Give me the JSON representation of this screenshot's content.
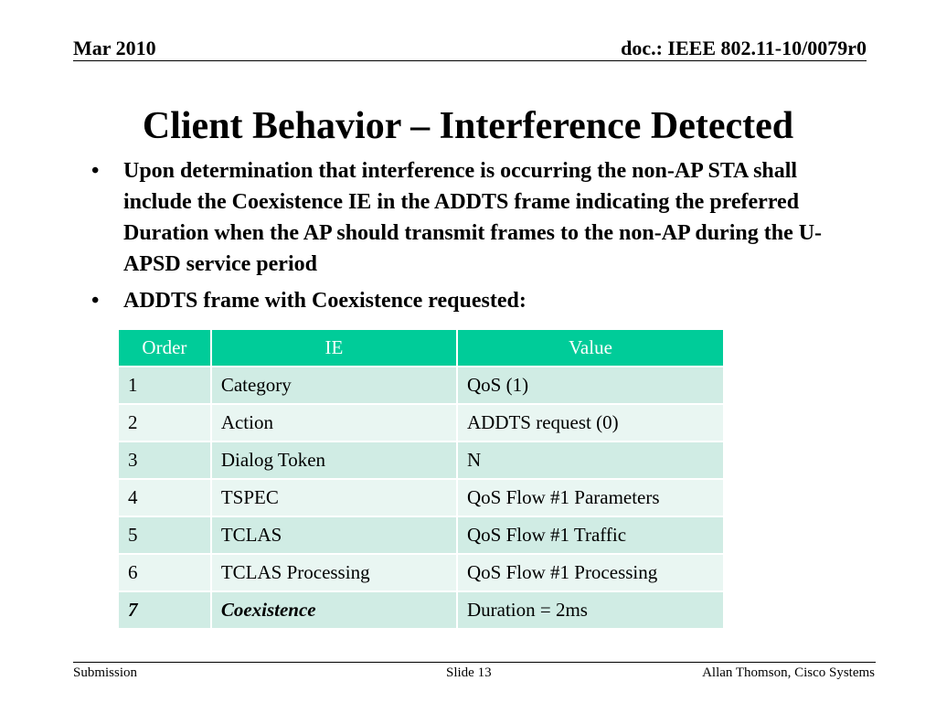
{
  "header": {
    "date": "Mar 2010",
    "doc": "doc.: IEEE 802.11-10/0079r0"
  },
  "title": "Client Behavior – Interference Detected",
  "bullets": [
    "Upon determination that interference is occurring the non-AP STA shall include the Coexistence IE in the ADDTS frame indicating the preferred Duration when the AP should transmit frames to the non-AP during the U-APSD service period",
    "ADDTS frame with Coexistence requested:"
  ],
  "bullet_symbol": "•",
  "table": {
    "header_color": "#00cc99",
    "columns": [
      "Order",
      "IE",
      "Value"
    ],
    "rows": [
      [
        "1",
        "Category",
        "QoS (1)"
      ],
      [
        "2",
        "Action",
        "ADDTS request (0)"
      ],
      [
        "3",
        "Dialog Token",
        "N"
      ],
      [
        "4",
        "TSPEC",
        "QoS Flow #1 Parameters"
      ],
      [
        "5",
        "TCLAS",
        "QoS Flow #1 Traffic"
      ],
      [
        "6",
        "TCLAS Processing",
        "QoS Flow #1 Processing"
      ],
      [
        "7",
        "Coexistence",
        "Duration = 2ms"
      ]
    ]
  },
  "footer": {
    "left": "Submission",
    "center": "Slide 13",
    "right": "Allan Thomson, Cisco Systems"
  }
}
